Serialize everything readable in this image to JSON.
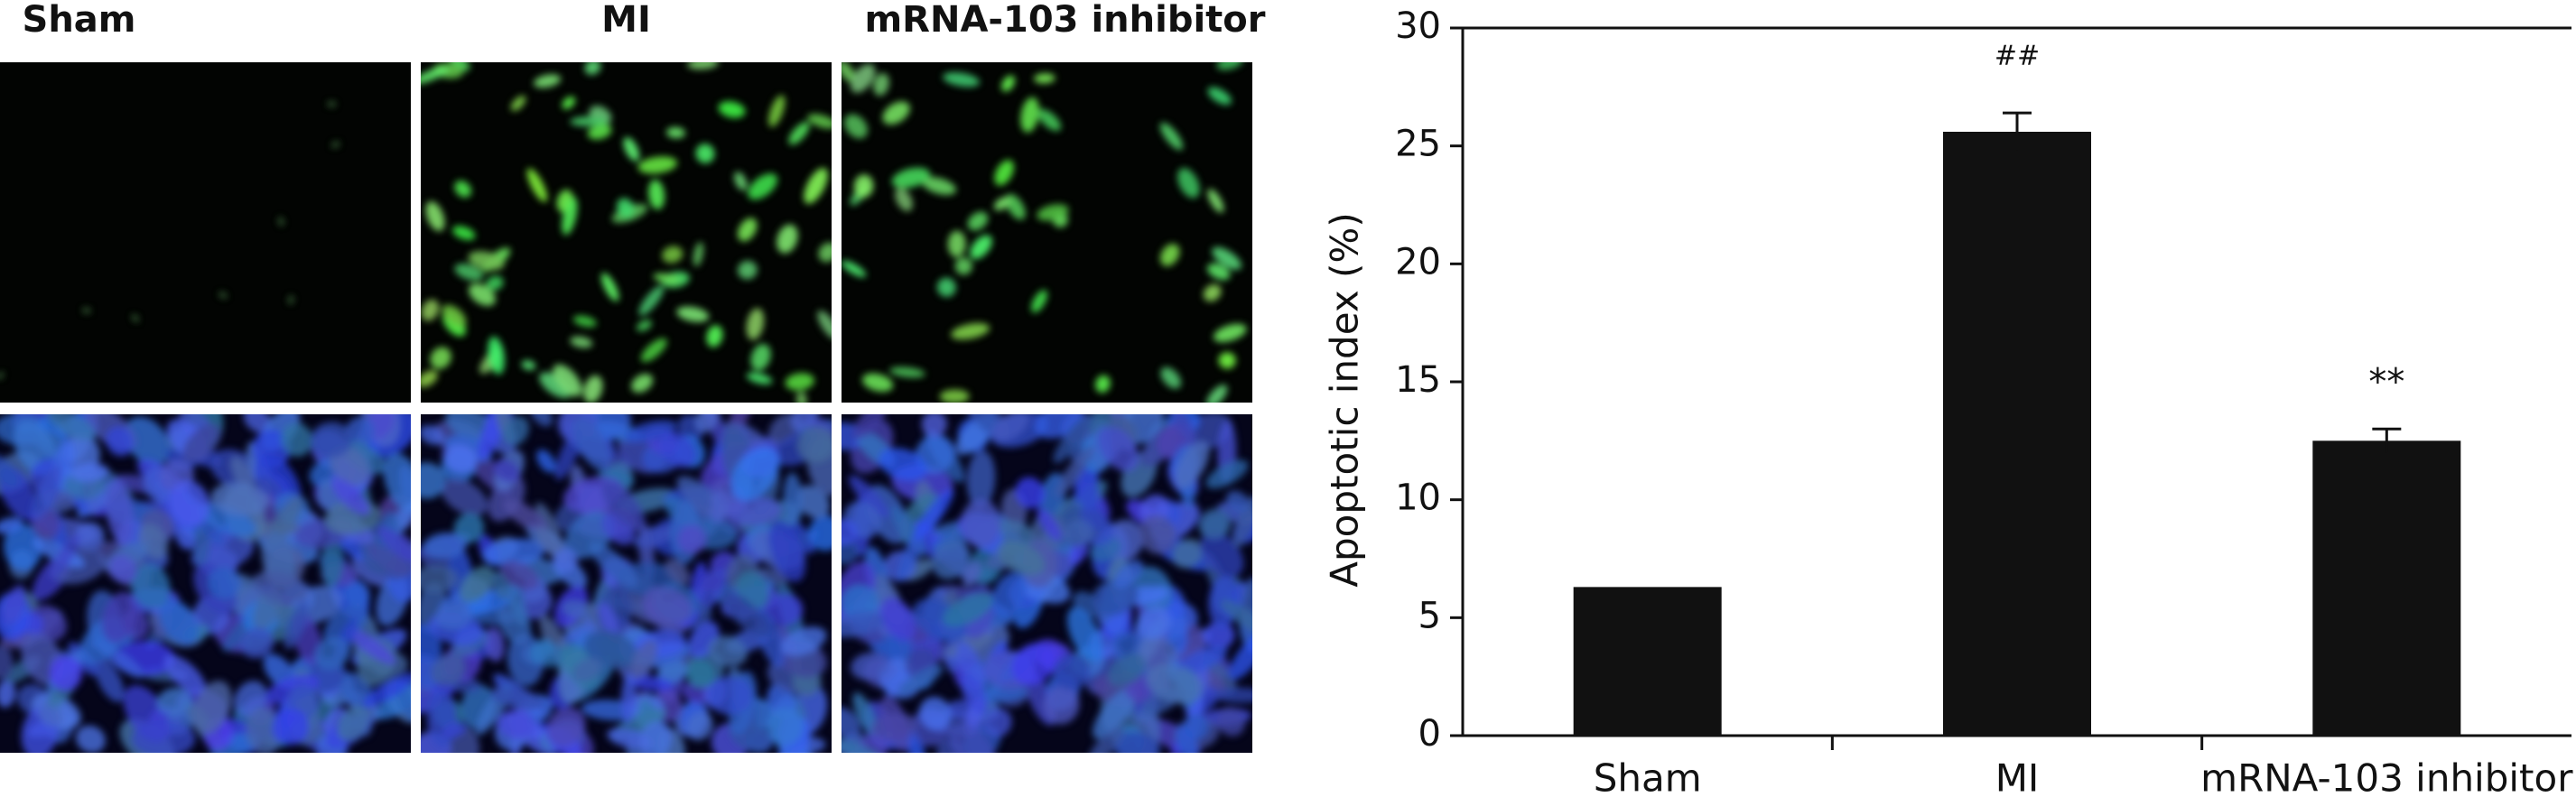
{
  "panel_labels": [
    "Sham",
    "MI",
    "mRNA-103 inhibitor"
  ],
  "chart_data": {
    "type": "bar",
    "categories": [
      "Sham",
      "MI",
      "mRNA-103 inhibitor"
    ],
    "values": [
      6.3,
      25.6,
      12.5
    ],
    "errors": [
      null,
      0.8,
      0.5
    ],
    "annotations": [
      null,
      "##",
      "**"
    ],
    "color": "#111111",
    "ylabel": "Apoptotic index (%)",
    "ylim": [
      0,
      30
    ],
    "yticks": [
      0,
      5,
      10,
      15,
      20,
      25,
      30
    ]
  }
}
